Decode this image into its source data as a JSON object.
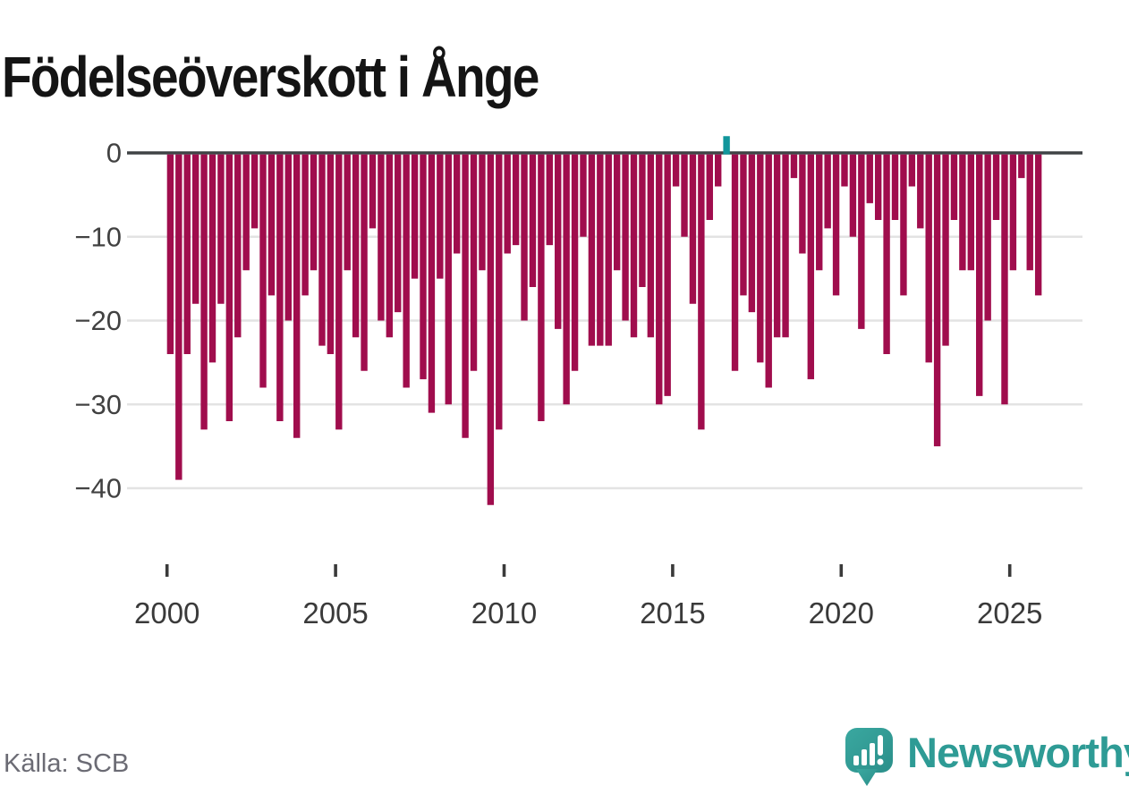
{
  "title": "Födelseöverskott i Ånge",
  "source": "Källa: SCB",
  "branding": {
    "name": "Newsworthy",
    "logo_icon": "speech-bubble-bar-chart-icon"
  },
  "colors": {
    "background": "#FFFFFF",
    "bar_negative": "#A00D4D",
    "bar_positive": "#11969B",
    "zero_line": "#3F4245",
    "gridline": "#E3E3E3",
    "axis_text": "#3A3A3A",
    "y_axis_text": "#414141",
    "source_text": "#6B6B74",
    "brand_teal": "#2E9B95",
    "title_text": "#141414"
  },
  "chart_data": {
    "type": "bar",
    "title": "Födelseöverskott i Ånge",
    "xlabel": "",
    "ylabel": "",
    "frequency": "quarterly",
    "start_period": "2000-Q1",
    "end_period": "2025-Q4",
    "x_tick_labels": [
      "2000",
      "2005",
      "2010",
      "2015",
      "2020",
      "2025"
    ],
    "y_tick_labels": [
      "0",
      "−10",
      "−20",
      "−30",
      "−40"
    ],
    "y_tick_values": [
      0,
      -10,
      -20,
      -30,
      -40
    ],
    "ylim": [
      -44,
      3
    ],
    "grid": "horizontal",
    "legend": "none",
    "positive_highlight_index": 66,
    "positive_highlight_period": "2016-Q3",
    "values": [
      -24,
      -39,
      -24,
      -18,
      -33,
      -25,
      -18,
      -32,
      -22,
      -14,
      -9,
      -28,
      -17,
      -32,
      -20,
      -34,
      -17,
      -14,
      -23,
      -24,
      -33,
      -14,
      -22,
      -26,
      -9,
      -20,
      -22,
      -19,
      -28,
      -15,
      -27,
      -31,
      -15,
      -30,
      -12,
      -34,
      -26,
      -14,
      -42,
      -33,
      -12,
      -11,
      -20,
      -16,
      -32,
      -11,
      -21,
      -30,
      -26,
      -10,
      -23,
      -23,
      -23,
      -14,
      -20,
      -22,
      -16,
      -22,
      -30,
      -29,
      -4,
      -10,
      -18,
      -33,
      -8,
      -4,
      2,
      -26,
      -17,
      -19,
      -25,
      -28,
      -22,
      -22,
      -3,
      -12,
      -27,
      -14,
      -9,
      -17,
      -4,
      -10,
      -21,
      -6,
      -8,
      -24,
      -8,
      -17,
      -4,
      -9,
      -25,
      -35,
      -23,
      -8,
      -14,
      -14,
      -29,
      -20,
      -8,
      -30,
      -14,
      -3,
      -14,
      -17
    ]
  }
}
